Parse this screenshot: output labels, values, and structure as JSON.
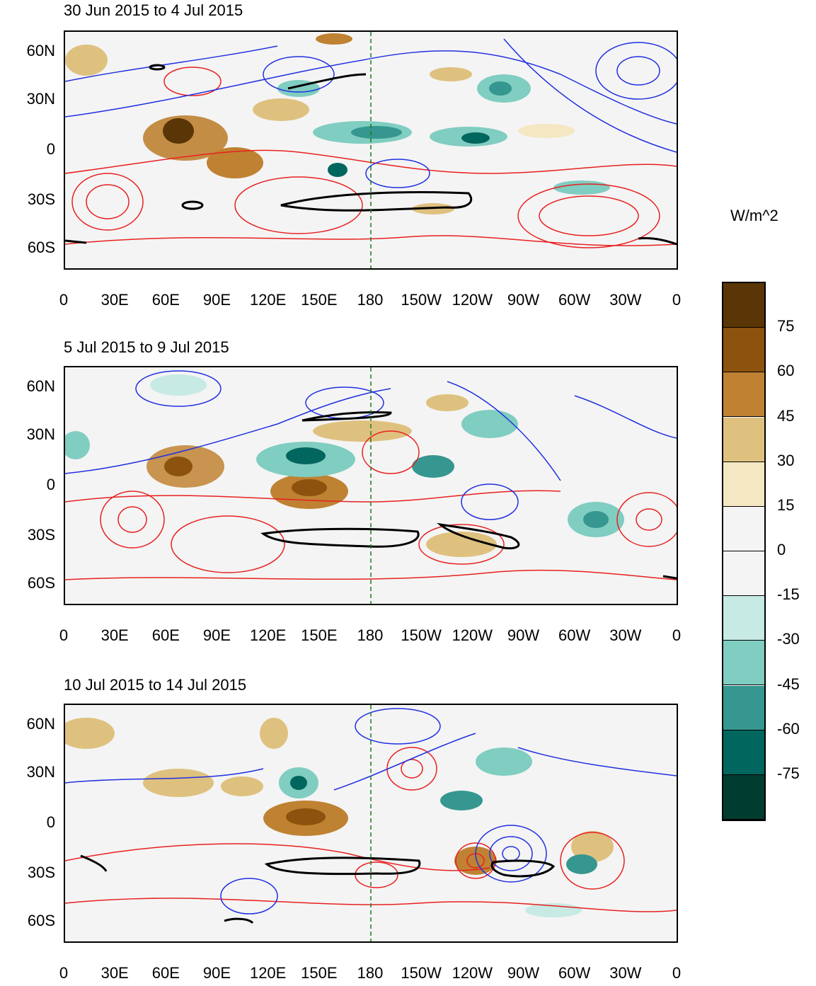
{
  "panels": [
    {
      "title": "30 Jun 2015 to 4 Jul 2015"
    },
    {
      "title": "5 Jul 2015 to 9 Jul 2015"
    },
    {
      "title": "10 Jul 2015 to 14 Jul 2015"
    }
  ],
  "lat_labels": [
    "60N",
    "30N",
    "0",
    "30S",
    "60S"
  ],
  "lon_labels": [
    "0",
    "30E",
    "60E",
    "90E",
    "120E",
    "150E",
    "180",
    "150W",
    "120W",
    "90W",
    "60W",
    "30W",
    "0"
  ],
  "colorbar": {
    "unit": "W/m^2",
    "labels": [
      "75",
      "60",
      "45",
      "30",
      "15",
      "0",
      "-15",
      "-30",
      "-45",
      "-60",
      "-75"
    ],
    "colors": [
      "#5a3505",
      "#8d520d",
      "#bf8232",
      "#dfc17f",
      "#f5e7c2",
      "#f4f4f4",
      "#f4f4f4",
      "#c7eae4",
      "#80cdc1",
      "#35978f",
      "#01665e",
      "#003c30"
    ]
  },
  "line_colors": {
    "positive_contour": "#e82020",
    "negative_contour": "#2030e0",
    "thick_contour": "#000000",
    "coastline": "#1c7a1c",
    "dateline": "#1c7a1c"
  }
}
